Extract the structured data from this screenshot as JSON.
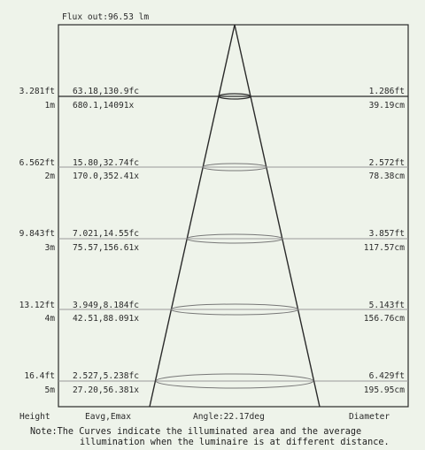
{
  "flux_out": "Flux out:96.53 lm",
  "rows": [
    {
      "height_ft": "3.281ft",
      "height_m": "1m",
      "fc": "63.18,130.9fc",
      "lx": "680.1,14091x",
      "diam_ft": "1.286ft",
      "diam_cm": "39.19cm"
    },
    {
      "height_ft": "6.562ft",
      "height_m": "2m",
      "fc": "15.80,32.74fc",
      "lx": "170.0,352.41x",
      "diam_ft": "2.572ft",
      "diam_cm": "78.38cm"
    },
    {
      "height_ft": "9.843ft",
      "height_m": "3m",
      "fc": "7.021,14.55fc",
      "lx": "75.57,156.61x",
      "diam_ft": "3.857ft",
      "diam_cm": "117.57cm"
    },
    {
      "height_ft": "13.12ft",
      "height_m": "4m",
      "fc": "3.949,8.184fc",
      "lx": "42.51,88.091x",
      "diam_ft": "5.143ft",
      "diam_cm": "156.76cm"
    },
    {
      "height_ft": "16.4ft",
      "height_m": "5m",
      "fc": "2.527,5.238fc",
      "lx": "27.20,56.381x",
      "diam_ft": "6.429ft",
      "diam_cm": "195.95cm"
    }
  ],
  "footer": {
    "height_label": "Height",
    "eavg_label": "Eavg,Emax",
    "angle_label": "Angle:22.17deg",
    "diameter_label": "Diameter"
  },
  "note": {
    "line1": "Note:The Curves indicate the illuminated area and the average",
    "line2": "illumination when the luminaire is at different distance."
  },
  "colors": {
    "background": "#eef3ea",
    "line": "#2a2a2a",
    "divider": "#9a9a9a"
  }
}
